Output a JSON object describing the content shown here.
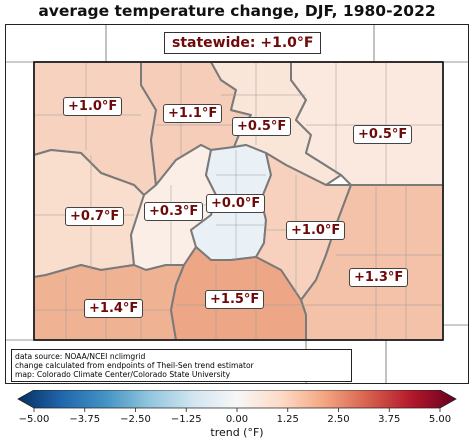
{
  "title": "average temperature change, DJF, 1980-2022",
  "statewide": "statewide: +1.0°F",
  "regions": [
    {
      "id": "northwest",
      "label": "+1.0°F",
      "value": 1.0,
      "color": "#f7d2bf"
    },
    {
      "id": "north-central",
      "label": "+1.1°F",
      "value": 1.1,
      "color": "#f6cdb8"
    },
    {
      "id": "north-front-range",
      "label": "+0.5°F",
      "value": 0.5,
      "color": "#fae5d9"
    },
    {
      "id": "northeast",
      "label": "+0.5°F",
      "value": 0.5,
      "color": "#fbe8de"
    },
    {
      "id": "west-central",
      "label": "+0.7°F",
      "value": 0.7,
      "color": "#f9ddcd"
    },
    {
      "id": "central-mountains",
      "label": "+0.3°F",
      "value": 0.3,
      "color": "#fbeee7"
    },
    {
      "id": "denver-metro",
      "label": "+0.0°F",
      "value": 0.0,
      "color": "#eaf1f6"
    },
    {
      "id": "east-central",
      "label": "+1.0°F",
      "value": 1.0,
      "color": "#f7d1be"
    },
    {
      "id": "southeast",
      "label": "+1.3°F",
      "value": 1.3,
      "color": "#f3c2a8"
    },
    {
      "id": "southwest",
      "label": "+1.4°F",
      "value": 1.4,
      "color": "#efb394"
    },
    {
      "id": "south-central",
      "label": "+1.5°F",
      "value": 1.5,
      "color": "#eda686"
    }
  ],
  "source_lines": [
    "data source: NOAA/NCEI nclimgrid",
    "change calculated from endpoints of Theil-Sen trend estimator",
    "map: Colorado Climate Center/Colorado State University"
  ],
  "colorbar": {
    "min": -5.0,
    "max": 5.0,
    "ticks": [
      "−5.00",
      "−3.75",
      "−2.50",
      "−1.25",
      "0.00",
      "1.25",
      "2.50",
      "3.75",
      "5.00"
    ],
    "label": "trend (°F)",
    "colors": [
      "#053061",
      "#2166ac",
      "#4393c3",
      "#92c5de",
      "#d1e5f0",
      "#f7f7f7",
      "#fddbc7",
      "#f4a582",
      "#d6604d",
      "#b2182b",
      "#67001f"
    ]
  }
}
